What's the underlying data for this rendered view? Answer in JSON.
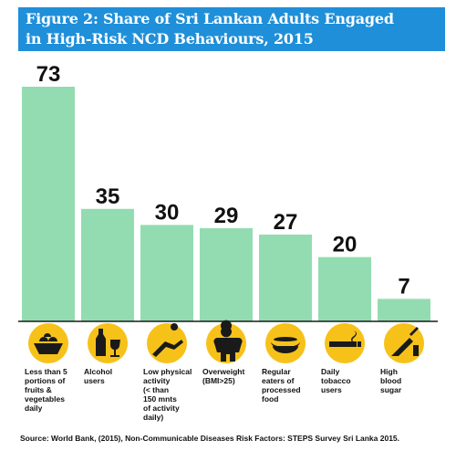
{
  "title": {
    "line1": "Figure 2: Share of Sri Lankan Adults Engaged",
    "line2": "in High-Risk NCD Behaviours, 2015"
  },
  "colors": {
    "title_bg": "#1f8fd9",
    "bar": "#93dcb1",
    "icon_bg": "#f6c21a",
    "baseline": "#1a1a1a"
  },
  "chart_data": {
    "type": "bar",
    "categories": [
      "Less than 5 portions of fruits & vegetables daily",
      "Alcohol users",
      "Low physical activity (< than 150 mnts of activity daily)",
      "Overweight (BMI>25)",
      "Regular eaters of processed food",
      "Daily tobacco users",
      "High blood sugar"
    ],
    "values": [
      73,
      35,
      30,
      29,
      27,
      20,
      7
    ],
    "value_labels": [
      "73",
      "35",
      "30",
      "29",
      "27",
      "20",
      "7"
    ],
    "ylim": [
      0,
      73
    ],
    "grid": false,
    "legend": "none"
  },
  "category_labels": [
    [
      "Less than 5",
      "portions of",
      "fruits &",
      "vegetables",
      "daily"
    ],
    [
      "Alcohol",
      "users"
    ],
    [
      "Low physical",
      "activity",
      "(< than",
      "150 mnts",
      "of activity",
      "daily)"
    ],
    [
      "Overweight",
      "(BMI>25)"
    ],
    [
      "Regular",
      "eaters of",
      "processed",
      "food"
    ],
    [
      "Daily",
      "tobacco",
      "users"
    ],
    [
      "High",
      "blood",
      "sugar"
    ]
  ],
  "icons": [
    "fruit-basket-icon",
    "alcohol-icon",
    "exercise-icon",
    "overweight-person-icon",
    "hotdog-icon",
    "cigarette-icon",
    "syringe-icon"
  ],
  "source": "Source: World Bank, (2015), Non-Communicable Diseases Risk Factors: STEPS Survey Sri Lanka 2015."
}
